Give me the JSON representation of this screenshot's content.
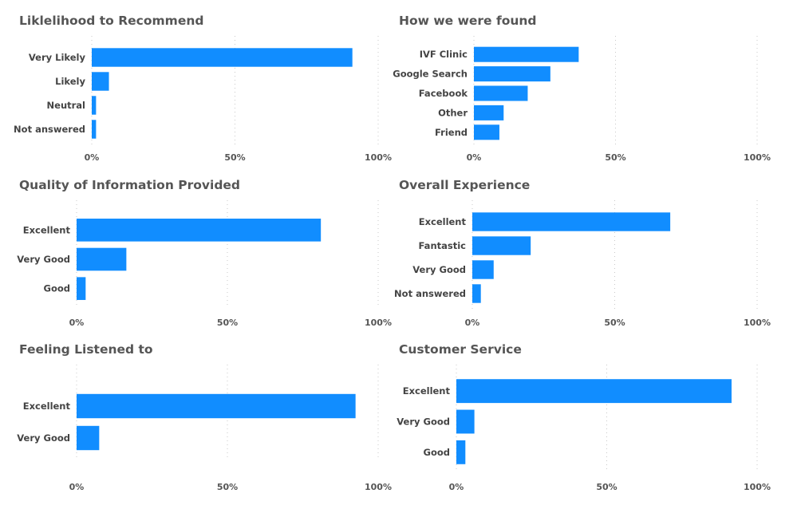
{
  "colors": {
    "bar": "#118DFF",
    "grid": "#C8C8C8",
    "title": "#555555",
    "label": "#444444"
  },
  "chart_data": [
    {
      "type": "bar",
      "orientation": "horizontal",
      "title": "Liklelihood to Recommend",
      "categories": [
        "Very Likely",
        "Likely",
        "Neutral",
        "Not answered"
      ],
      "values": [
        91,
        6,
        1.5,
        1.5
      ],
      "xlim": [
        0,
        100
      ],
      "ticks": [
        "0%",
        "50%",
        "100%"
      ],
      "grid": true
    },
    {
      "type": "bar",
      "orientation": "horizontal",
      "title": "How we were found",
      "categories": [
        "IVF Clinic",
        "Google Search",
        "Facebook",
        "Other",
        "Friend"
      ],
      "values": [
        37,
        27,
        19,
        10.5,
        9
      ],
      "xlim": [
        0,
        100
      ],
      "ticks": [
        "0%",
        "50%",
        "100%"
      ],
      "grid": true
    },
    {
      "type": "bar",
      "orientation": "horizontal",
      "title": "Quality of Information Provided",
      "categories": [
        "Excellent",
        "Very Good",
        "Good"
      ],
      "values": [
        81,
        16.5,
        3
      ],
      "xlim": [
        0,
        100
      ],
      "ticks": [
        "0%",
        "50%",
        "100%"
      ],
      "grid": true
    },
    {
      "type": "bar",
      "orientation": "horizontal",
      "title": "Overall Experience",
      "categories": [
        "Excellent",
        "Fantastic",
        "Very Good",
        "Not answered"
      ],
      "values": [
        69.5,
        20.5,
        7.5,
        3
      ],
      "xlim": [
        0,
        100
      ],
      "ticks": [
        "0%",
        "50%",
        "100%"
      ],
      "grid": true
    },
    {
      "type": "bar",
      "orientation": "horizontal",
      "title": "Feeling Listened to",
      "categories": [
        "Excellent",
        "Very Good"
      ],
      "values": [
        92.5,
        7.5
      ],
      "xlim": [
        0,
        100
      ],
      "ticks": [
        "0%",
        "50%",
        "100%"
      ],
      "grid": true
    },
    {
      "type": "bar",
      "orientation": "horizontal",
      "title": "Customer Service",
      "categories": [
        "Excellent",
        "Very Good",
        "Good"
      ],
      "values": [
        91.5,
        6,
        3
      ],
      "xlim": [
        0,
        100
      ],
      "ticks": [
        "0%",
        "50%",
        "100%"
      ],
      "grid": true
    }
  ]
}
